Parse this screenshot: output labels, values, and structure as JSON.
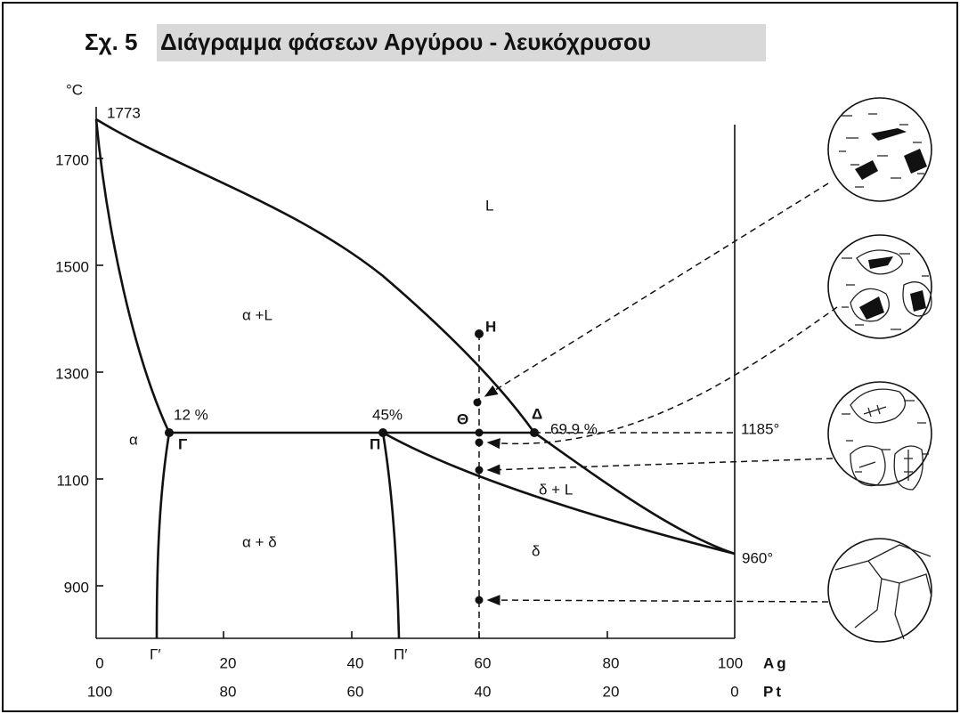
{
  "title": {
    "figure": "Σχ. 5",
    "text": "Διάγραμμα φάσεων Αργύρου - λευκόχρυσου"
  },
  "y_axis": {
    "unit": "°C",
    "ticks": [
      1700,
      1500,
      1300,
      1100,
      900
    ]
  },
  "x_axis": {
    "rows": [
      {
        "name": "Ag",
        "ticks": [
          0,
          20,
          40,
          60,
          80,
          100
        ]
      },
      {
        "name": "Pt",
        "ticks": [
          100,
          80,
          60,
          40,
          20,
          0
        ]
      }
    ]
  },
  "labels": {
    "top": "1773",
    "liquid": "L",
    "alpha_liquid": "α +L",
    "h": "H",
    "gamma_pct": "12 %",
    "pi_pct": "45%",
    "theta": "Θ",
    "delta_point": "Δ",
    "delta_pct": "69.9 %",
    "peritectic": "1185°",
    "alpha": "α",
    "gamma": "Γ",
    "pi": "Π",
    "delta_liquid": "δ + L",
    "alpha_delta": "α + δ",
    "delta": "δ",
    "melt_ag": "960°",
    "gamma_prime": "Γ′",
    "pi_prime": "Π′"
  }
}
